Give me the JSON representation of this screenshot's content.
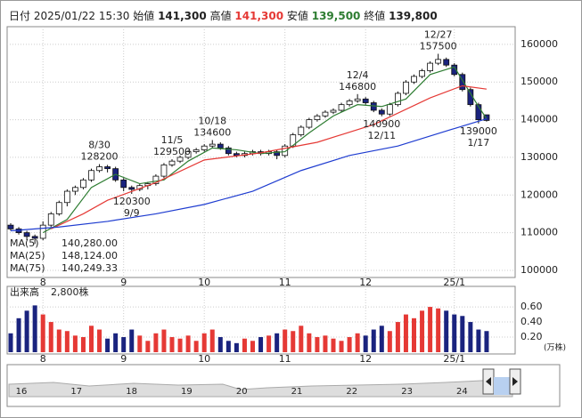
{
  "header": {
    "date_label": "日付",
    "date": "2025/01/22 15:30",
    "open_label": "始値",
    "open": "141,300",
    "high_label": "高値",
    "high": "141,300",
    "low_label": "安値",
    "low": "139,500",
    "close_label": "終値",
    "close": "139,800"
  },
  "chart_data": [
    {
      "type": "candlestick",
      "categories": [
        null,
        null,
        null,
        null,
        null,
        null,
        null,
        null,
        null,
        null,
        null,
        null,
        null,
        null,
        null,
        null,
        null,
        null,
        null,
        null,
        null,
        null,
        null,
        null,
        null,
        null,
        null,
        null,
        null,
        null,
        null,
        null,
        null,
        null,
        null,
        null,
        null,
        null,
        null,
        null,
        null,
        null,
        null,
        null,
        null,
        null,
        null,
        null,
        null,
        null,
        null,
        null,
        null,
        null,
        null,
        null,
        null,
        null,
        null,
        null
      ],
      "open": [
        112000,
        111000,
        110000,
        109000,
        108500,
        112000,
        115000,
        118000,
        121000,
        122000,
        124000,
        126500,
        127500,
        127000,
        124000,
        122000,
        121500,
        122500,
        123000,
        125000,
        128000,
        129000,
        130000,
        131500,
        132000,
        133000,
        133500,
        132500,
        131000,
        130500,
        131000,
        131500,
        131000,
        131500,
        130500,
        133000,
        136000,
        138000,
        140000,
        141000,
        142000,
        142500,
        144000,
        145000,
        145500,
        144500,
        142500,
        141500,
        144000,
        147000,
        150000,
        151500,
        153000,
        155000,
        156000,
        154500,
        152000,
        148000,
        144000,
        141300
      ],
      "high": [
        112500,
        111500,
        110500,
        109500,
        113000,
        115500,
        118500,
        121500,
        122500,
        124500,
        127000,
        128200,
        128000,
        127500,
        124500,
        122500,
        123000,
        123500,
        125500,
        128500,
        129500,
        130500,
        132000,
        132500,
        133500,
        134600,
        134000,
        133000,
        131500,
        131500,
        132000,
        132000,
        132000,
        132000,
        133500,
        136500,
        138500,
        140500,
        141500,
        142500,
        143000,
        144500,
        145500,
        146800,
        146000,
        145000,
        143000,
        144500,
        147500,
        150500,
        152000,
        153500,
        155500,
        157500,
        156500,
        155000,
        152500,
        148500,
        144500,
        141300
      ],
      "low": [
        110500,
        109500,
        108000,
        107000,
        108000,
        111500,
        114500,
        117000,
        120000,
        121500,
        123500,
        126000,
        126000,
        123500,
        121000,
        120300,
        121000,
        121500,
        122500,
        124500,
        127500,
        128500,
        129500,
        131000,
        131500,
        132500,
        132000,
        130500,
        130000,
        130000,
        130500,
        130500,
        130500,
        129500,
        130000,
        132500,
        135500,
        137500,
        139500,
        140500,
        141500,
        142000,
        143500,
        144500,
        144000,
        142000,
        140900,
        141000,
        143500,
        146500,
        149500,
        151000,
        152500,
        154500,
        154000,
        151500,
        147500,
        143500,
        139000,
        139500
      ],
      "close": [
        111000,
        110000,
        109000,
        108500,
        112000,
        115000,
        118000,
        121000,
        122000,
        124000,
        126500,
        127500,
        127000,
        124000,
        122000,
        121500,
        122500,
        123000,
        125000,
        128000,
        129000,
        130000,
        131500,
        132000,
        133000,
        133500,
        132500,
        131000,
        130500,
        131000,
        131500,
        131000,
        131500,
        130500,
        133000,
        136000,
        138000,
        140000,
        141000,
        142000,
        142500,
        144000,
        145000,
        145500,
        144500,
        142500,
        141500,
        144000,
        147000,
        150000,
        151500,
        153000,
        155000,
        156000,
        154500,
        152000,
        148000,
        144000,
        140000,
        139800
      ],
      "up_color": "#ffffff",
      "down_color": "#1a237e",
      "xticks": [
        {
          "value": 4,
          "label": "8"
        },
        {
          "value": 14,
          "label": "9"
        },
        {
          "value": 24,
          "label": "10"
        },
        {
          "value": 34,
          "label": "11"
        },
        {
          "value": 44,
          "label": "12"
        },
        {
          "value": 55,
          "label": "25/1"
        }
      ],
      "ylim": [
        98100,
        164700
      ],
      "yticks": [
        100000,
        110000,
        120000,
        130000,
        140000,
        150000,
        160000
      ],
      "grid": true,
      "series": [
        {
          "name": "MA(5)",
          "value_label": "140,280.00",
          "color": "#2e7d32",
          "x": [
            4,
            7,
            10,
            13,
            16,
            19,
            22,
            25,
            28,
            31,
            34,
            37,
            40,
            43,
            46,
            49,
            52,
            55,
            58,
            59
          ],
          "values": [
            110000,
            113500,
            122000,
            125500,
            123000,
            124000,
            129000,
            132500,
            132000,
            131000,
            131500,
            136500,
            141000,
            144000,
            143500,
            145500,
            152000,
            154000,
            143500,
            140280
          ]
        },
        {
          "name": "MA(25)",
          "value_label": "148,124.00",
          "color": "#e53935",
          "x": [
            5,
            9,
            12,
            18,
            24,
            31,
            38,
            45,
            52,
            56,
            59
          ],
          "values": [
            111000,
            115000,
            118600,
            123300,
            129300,
            131200,
            134000,
            138700,
            145800,
            149000,
            148124
          ]
        },
        {
          "name": "MA(75)",
          "value_label": "140,249.33",
          "color": "#1e3cd0",
          "x": [
            0,
            6,
            12,
            18,
            24,
            30,
            36,
            42,
            48,
            54,
            59
          ],
          "values": [
            110500,
            111500,
            113000,
            115000,
            117500,
            121000,
            126500,
            130500,
            133000,
            137000,
            140249.33
          ]
        }
      ],
      "annotations": [
        {
          "label": "8/30",
          "value": 128200
        },
        {
          "label": "9/9",
          "value": 120300
        },
        {
          "label": "10/18",
          "value": 134600
        },
        {
          "label": "11/5",
          "value": 129500
        },
        {
          "label": "12/4",
          "value": 146800
        },
        {
          "label": "12/11",
          "value": 140900
        },
        {
          "label": "12/27",
          "value": 157500
        },
        {
          "label": "1/17",
          "value": 139000
        }
      ]
    },
    {
      "type": "volume",
      "title": "出来高",
      "latest": "2,800株",
      "unit": "(万株)",
      "values": [
        0.25,
        0.45,
        0.55,
        0.62,
        0.5,
        0.4,
        0.3,
        0.28,
        0.22,
        0.2,
        0.35,
        0.3,
        0.18,
        0.25,
        0.2,
        0.3,
        0.22,
        0.15,
        0.25,
        0.3,
        0.2,
        0.18,
        0.22,
        0.15,
        0.25,
        0.3,
        0.2,
        0.15,
        0.12,
        0.18,
        0.15,
        0.2,
        0.22,
        0.25,
        0.3,
        0.28,
        0.35,
        0.25,
        0.2,
        0.22,
        0.18,
        0.15,
        0.2,
        0.25,
        0.22,
        0.3,
        0.35,
        0.28,
        0.4,
        0.5,
        0.45,
        0.55,
        0.6,
        0.58,
        0.55,
        0.5,
        0.48,
        0.4,
        0.3,
        0.28
      ],
      "up_color": "#e53935",
      "down_color": "#1a237e",
      "ylim": [
        0,
        0.66
      ],
      "yticks": [
        {
          "value": 0.2,
          "label": "0.20"
        },
        {
          "value": 0.4,
          "label": "0.40"
        },
        {
          "value": 0.6,
          "label": "0.60"
        }
      ]
    }
  ],
  "navigator": {
    "labels": [
      "16",
      "17",
      "18",
      "19",
      "20",
      "21",
      "22",
      "23",
      "24"
    ]
  }
}
